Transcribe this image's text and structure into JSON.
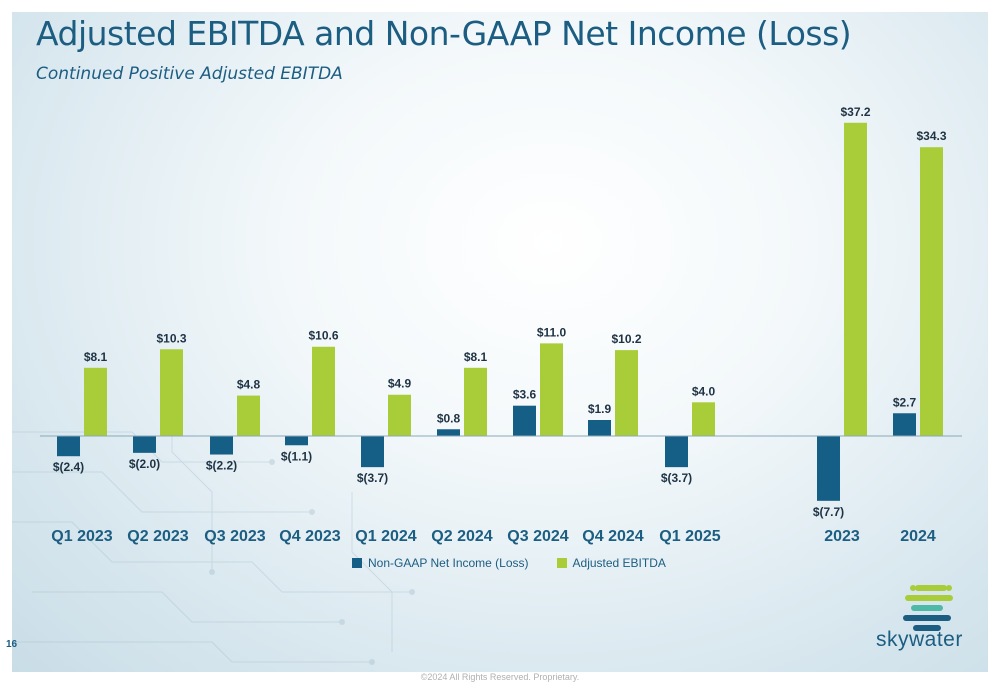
{
  "title": "Adjusted EBITDA and Non-GAAP Net Income (Loss)",
  "subtitle": "Continued Positive Adjusted EBITDA",
  "page_number": "16",
  "footer": "©2024 All Rights Reserved. Proprietary.",
  "logo_text": "skywater",
  "colors": {
    "net_income": "#155e85",
    "ebitda": "#a8cd38",
    "title": "#1c5d82"
  },
  "legend": {
    "net_income": "Non-GAAP Net Income (Loss)",
    "ebitda": "Adjusted EBITDA"
  },
  "chart_data": {
    "type": "bar",
    "categories": [
      "Q1 2023",
      "Q2 2023",
      "Q3 2023",
      "Q4 2023",
      "Q1 2024",
      "Q2 2024",
      "Q3 2024",
      "Q4 2024",
      "Q1 2025",
      "2023",
      "2024"
    ],
    "series": [
      {
        "name": "Non-GAAP Net Income (Loss)",
        "values": [
          -2.4,
          -2.0,
          -2.2,
          -1.1,
          -3.7,
          0.8,
          3.6,
          1.9,
          -3.7,
          -7.7,
          2.7
        ],
        "labels": [
          "$(2.4)",
          "$(2.0)",
          "$(2.2)",
          "$(1.1)",
          "$(3.7)",
          "$0.8",
          "$3.6",
          "$1.9",
          "$(3.7)",
          "$(7.7)",
          "$2.7"
        ]
      },
      {
        "name": "Adjusted EBITDA",
        "values": [
          8.1,
          10.3,
          4.8,
          10.6,
          4.9,
          8.1,
          11.0,
          10.2,
          4.0,
          37.2,
          34.3
        ],
        "labels": [
          "$8.1",
          "$10.3",
          "$4.8",
          "$10.6",
          "$4.9",
          "$8.1",
          "$11.0",
          "$10.2",
          "$4.0",
          "$37.2",
          "$34.3"
        ]
      }
    ],
    "ylim": [
      -7.7,
      37.2
    ],
    "grid": false,
    "legend_position": "bottom"
  }
}
